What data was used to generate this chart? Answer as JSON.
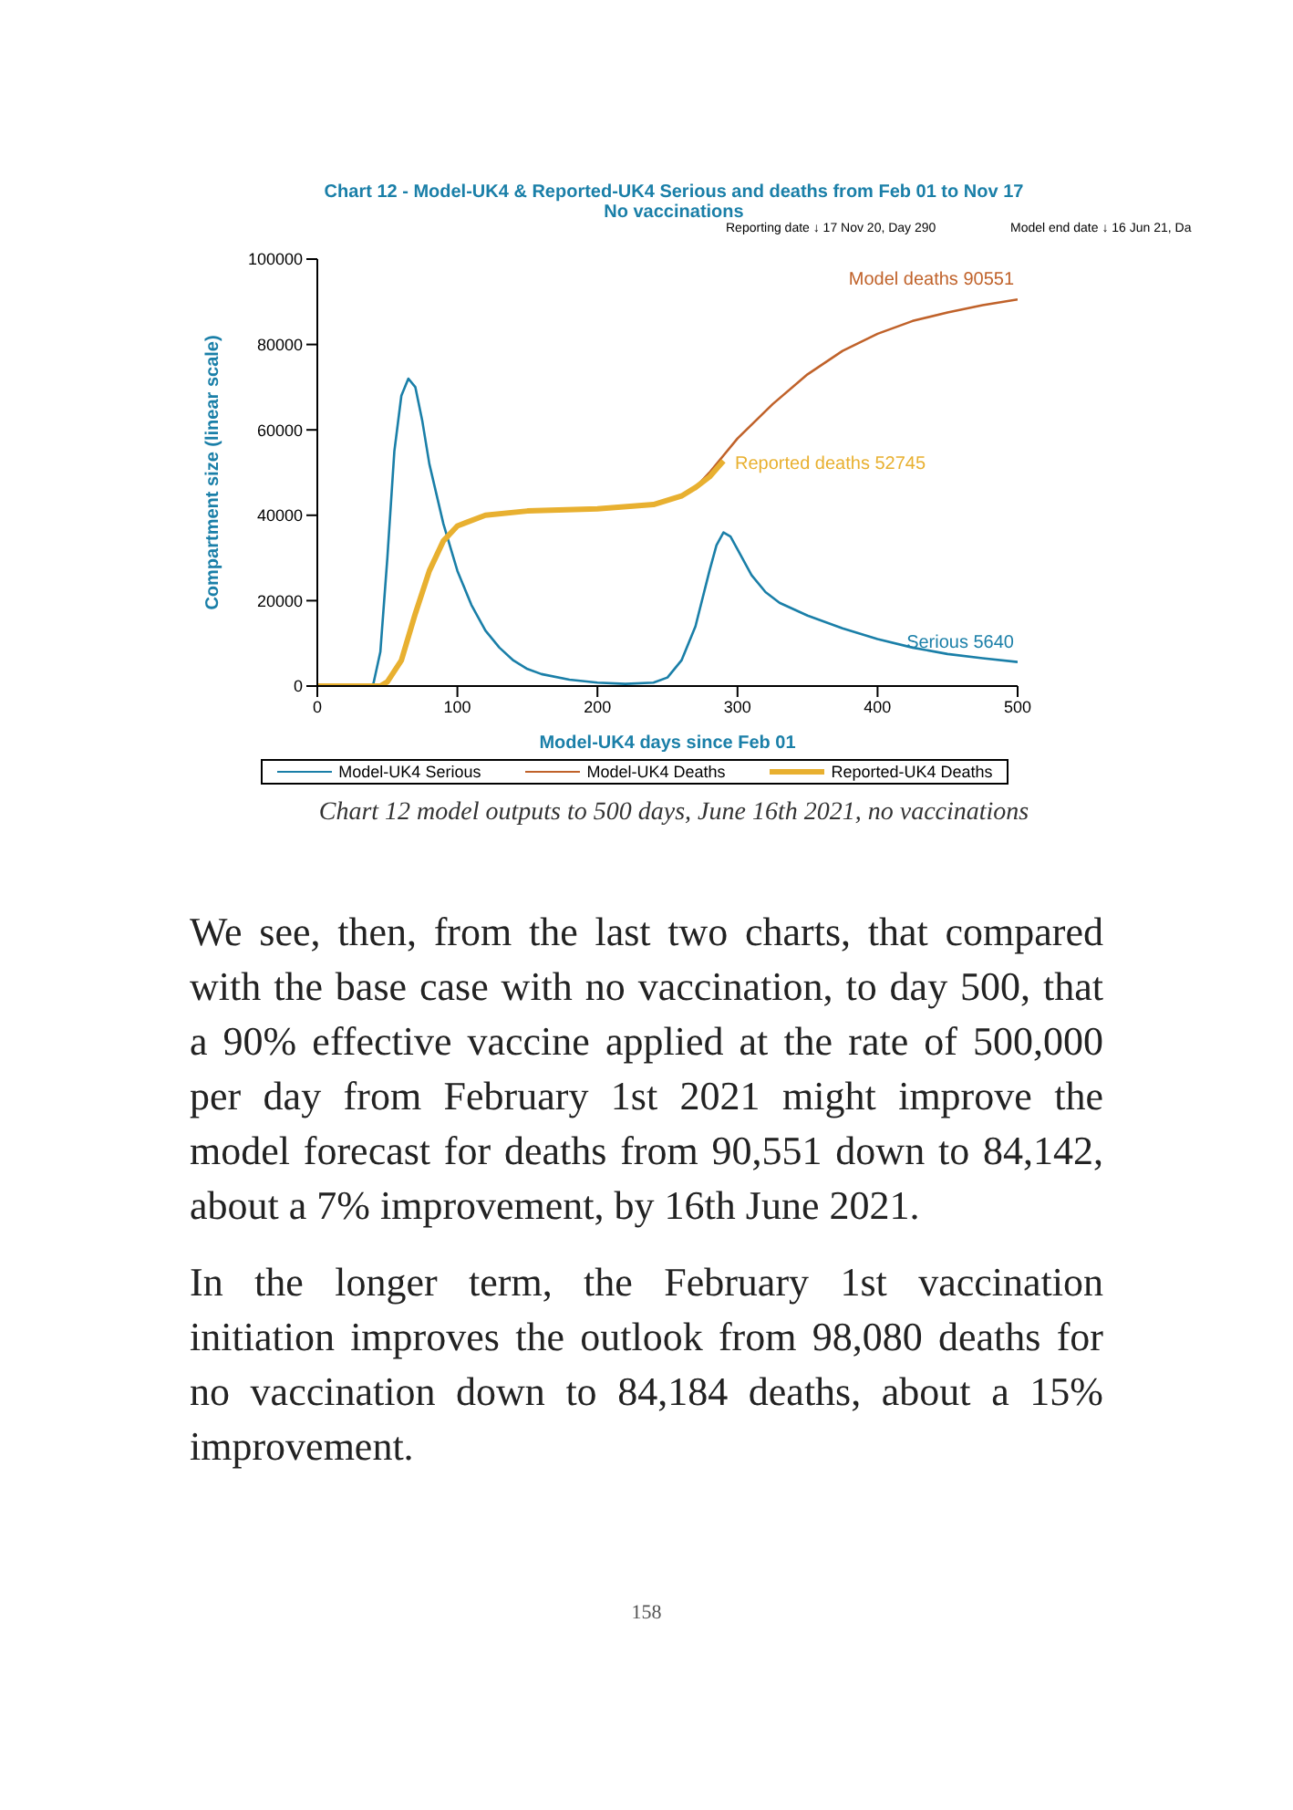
{
  "chart_data": {
    "type": "line",
    "title": "Chart 12 - Model-UK4 & Reported-UK4 Serious and deaths from Feb 01 to Nov 17",
    "subtitle": "No vaccinations",
    "xlabel": "Model-UK4 days since Feb 01",
    "ylabel": "Compartment size (linear scale)",
    "xlim": [
      0,
      500
    ],
    "xticks": [
      0,
      100,
      200,
      300,
      400,
      500
    ],
    "ylim": [
      0,
      100000
    ],
    "yticks": [
      0,
      20000,
      40000,
      60000,
      80000,
      100000
    ],
    "grid": false,
    "legend": "bottom",
    "marker": "none",
    "series": [
      {
        "name": "Model-UK4 Serious",
        "color": "#1a7fa8",
        "x": [
          0,
          35,
          40,
          45,
          50,
          55,
          60,
          65,
          70,
          75,
          80,
          90,
          100,
          110,
          120,
          130,
          140,
          150,
          160,
          180,
          200,
          220,
          240,
          250,
          260,
          270,
          280,
          285,
          290,
          295,
          300,
          310,
          320,
          330,
          350,
          375,
          400,
          425,
          450,
          475,
          500
        ],
        "values": [
          0,
          0,
          500,
          8000,
          30000,
          55000,
          68000,
          72000,
          70000,
          62000,
          52000,
          38000,
          27000,
          19000,
          13000,
          9000,
          6000,
          4000,
          2800,
          1500,
          800,
          500,
          800,
          2000,
          6000,
          14000,
          27000,
          33000,
          36000,
          35000,
          32000,
          26000,
          22000,
          19500,
          16500,
          13500,
          11000,
          9000,
          7500,
          6500,
          5640
        ]
      },
      {
        "name": "Model-UK4 Deaths",
        "color": "#c0622a",
        "x": [
          270,
          280,
          290,
          300,
          325,
          350,
          375,
          400,
          425,
          450,
          475,
          500
        ],
        "values": [
          46500,
          50000,
          54000,
          58000,
          66000,
          73000,
          78500,
          82500,
          85500,
          87500,
          89200,
          90551
        ]
      },
      {
        "name": "Reported-UK4 Deaths",
        "color": "#e8b030",
        "x": [
          0,
          45,
          50,
          60,
          70,
          80,
          90,
          100,
          120,
          150,
          200,
          240,
          260,
          270,
          280,
          290
        ],
        "values": [
          0,
          0,
          1000,
          6000,
          17000,
          27000,
          34000,
          37500,
          40000,
          41000,
          41500,
          42500,
          44500,
          46500,
          49000,
          52745
        ]
      }
    ],
    "annotations": [
      "Reporting date ↓ 17 Nov 20, Day 290",
      "Model end date ↓ 16 Jun 21, Da",
      "Model deaths 90551",
      "Reported deaths 52745",
      "Serious 5640",
      "Chart 12 model outputs to 500 days, June 16th 2021, no vaccinations",
      "We see, then, from the last two charts, that compared with the base case with no vaccination, to day 500, that a 90% effective vaccine applied at the rate of 500,000 per day from February 1st 2021 might improve the model forecast for deaths from 90,551 down to 84,142, about a 7% improvement, by 16th June 2021.",
      "In the longer term, the February 1st vaccination initiation improves the outlook from 98,080 deaths for no vaccination down to 84,184 deaths, about a 15% improvement.",
      "158"
    ]
  }
}
